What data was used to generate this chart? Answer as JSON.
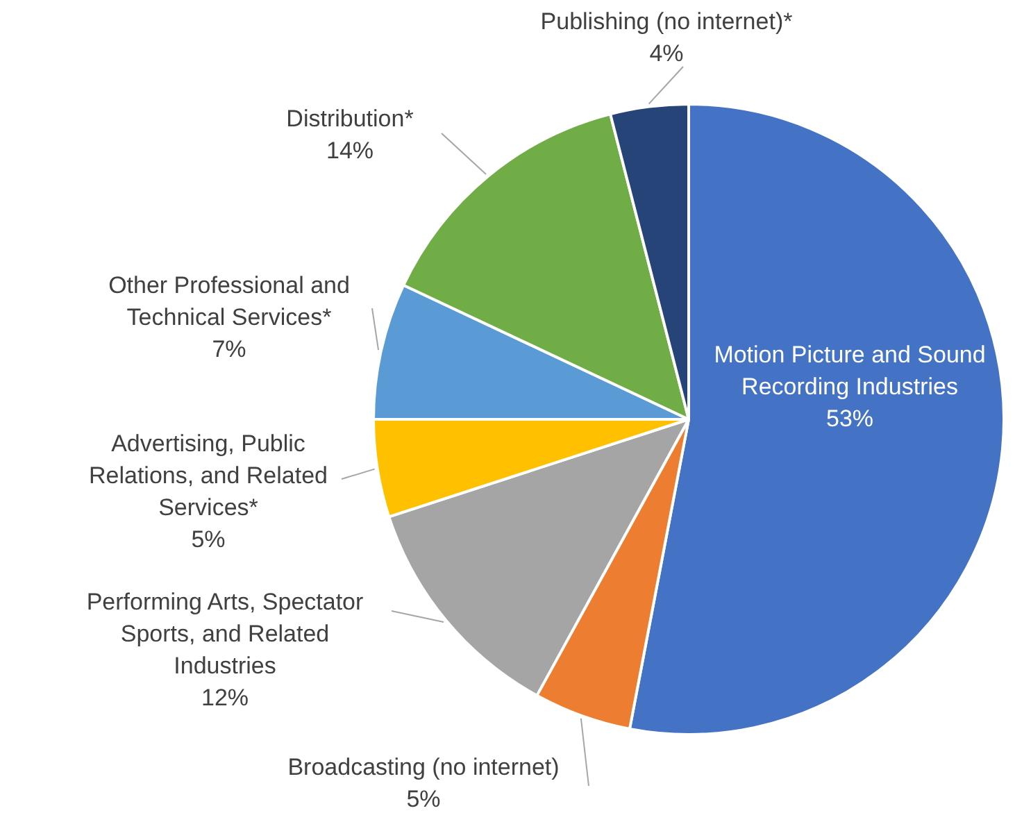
{
  "chart_data": {
    "type": "pie",
    "categories": [
      "Motion Picture and Sound Recording Industries",
      "Broadcasting (no internet)",
      "Performing Arts, Spectator Sports, and Related Industries",
      "Advertising, Public Relations, and Related Services*",
      "Other Professional and Technical Services*",
      "Distribution*",
      "Publishing (no internet)*"
    ],
    "values": [
      53,
      5,
      12,
      5,
      7,
      14,
      4
    ],
    "value_labels": [
      "53%",
      "5%",
      "12%",
      "5%",
      "7%",
      "14%",
      "4%"
    ],
    "colors": [
      "#4472c4",
      "#ed7d31",
      "#a5a5a5",
      "#ffc000",
      "#5b9bd5",
      "#70ad47",
      "#264478"
    ],
    "legend": false
  }
}
